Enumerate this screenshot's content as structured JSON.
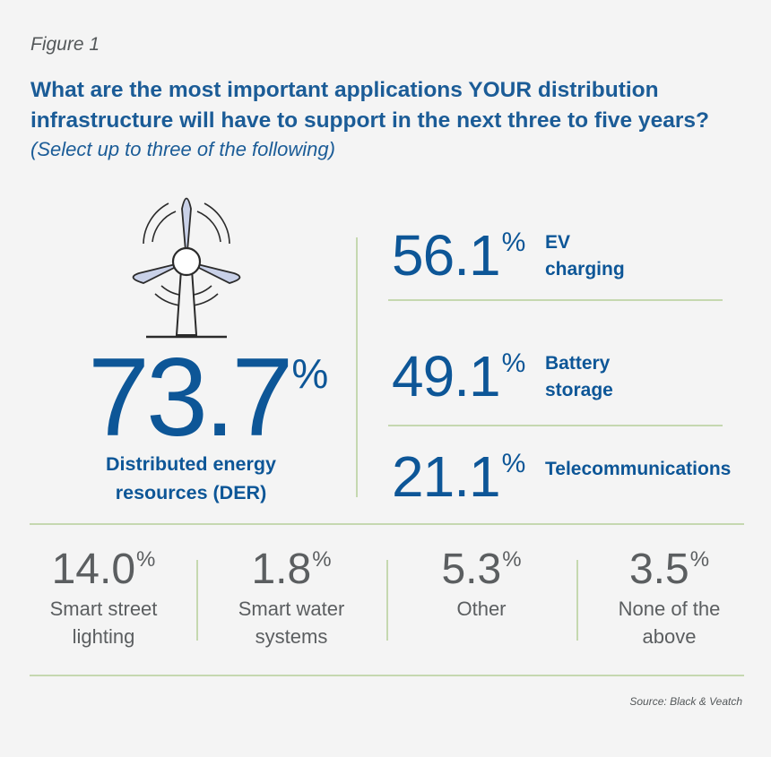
{
  "figure_label": "Figure 1",
  "title": {
    "before": "What are the most important applications ",
    "emphasis": "YOUR",
    "after": " distribution infrastructure will have to support in the next three to five years?"
  },
  "subtitle": "(Select up to three of the following)",
  "source": "Source: Black & Veatch",
  "icon": "wind-turbine-icon",
  "colors": {
    "primary": "#0d5697",
    "title": "#1b5c97",
    "secondary_text": "#5b5e60",
    "divider": "#c5d8b0",
    "turbine_blade": "#c9d1e8"
  },
  "chart_data": {
    "type": "table",
    "unit": "%",
    "items": [
      {
        "label": "Distributed energy resources (DER)",
        "value": 73.7,
        "display": "73.7",
        "emphasis": "primary"
      },
      {
        "label": "EV charging",
        "value": 56.1,
        "display": "56.1",
        "emphasis": "secondary"
      },
      {
        "label": "Battery storage",
        "value": 49.1,
        "display": "49.1",
        "emphasis": "secondary"
      },
      {
        "label": "Telecommunications",
        "value": 21.1,
        "display": "21.1",
        "emphasis": "secondary"
      },
      {
        "label": "Smart street lighting",
        "value": 14.0,
        "display": "14.0",
        "emphasis": "tertiary"
      },
      {
        "label": "Smart water systems",
        "value": 1.8,
        "display": "1.8",
        "emphasis": "tertiary"
      },
      {
        "label": "Other",
        "value": 5.3,
        "display": "5.3",
        "emphasis": "tertiary"
      },
      {
        "label": "None of the above",
        "value": 3.5,
        "display": "3.5",
        "emphasis": "tertiary"
      }
    ]
  }
}
